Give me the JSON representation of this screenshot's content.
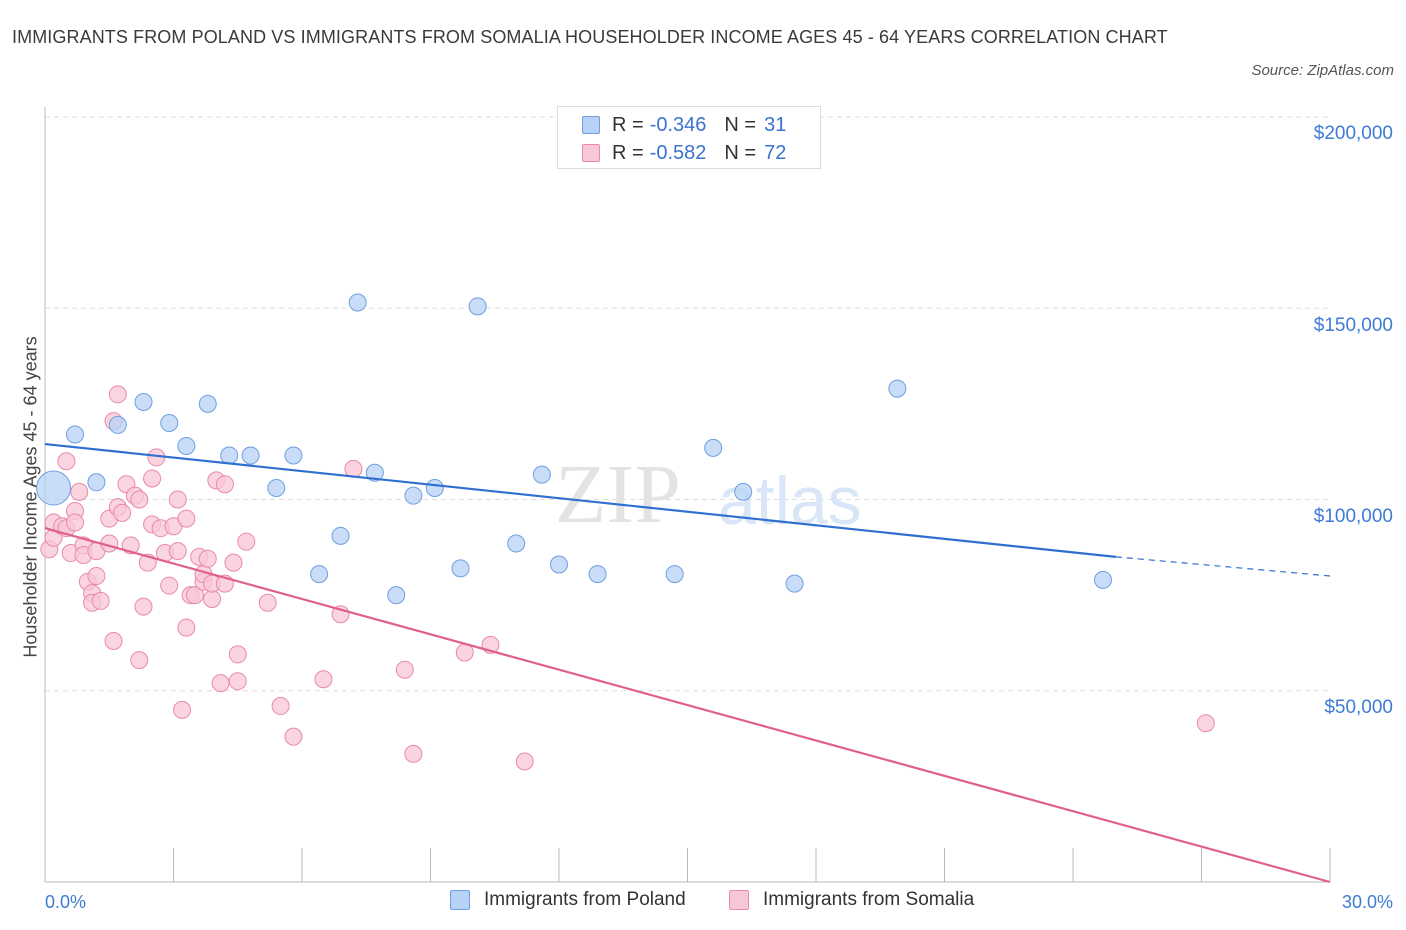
{
  "title": "IMMIGRANTS FROM POLAND VS IMMIGRANTS FROM SOMALIA HOUSEHOLDER INCOME AGES 45 - 64 YEARS CORRELATION CHART",
  "source": "Source: ZipAtlas.com",
  "watermark": {
    "zip": "ZIP",
    "atlas": "atlas"
  },
  "stats": {
    "poland": {
      "r_label": "R =",
      "r_value": "-0.346",
      "n_label": "N =",
      "n_value": "31"
    },
    "somalia": {
      "r_label": "R =",
      "r_value": "-0.582",
      "n_label": "N =",
      "n_value": "72"
    }
  },
  "legend": {
    "poland": "Immigrants from Poland",
    "somalia": "Immigrants from Somalia"
  },
  "colors": {
    "poland_fill": "#b7d2f6",
    "poland_stroke": "#6f9fe0",
    "poland_line": "#2f6fd0",
    "somalia_fill": "#f8c7d6",
    "somalia_stroke": "#e98aa8",
    "somalia_line": "#e0608c",
    "tick_text": "#3e7bd6",
    "grid": "#dddddd"
  },
  "chart_data": {
    "type": "scatter",
    "title": "IMMIGRANTS FROM POLAND VS IMMIGRANTS FROM SOMALIA HOUSEHOLDER INCOME AGES 45 - 64 YEARS CORRELATION CHART",
    "xlabel": "",
    "ylabel": "Householder Income Ages 45 - 64 years",
    "xlim": [
      0,
      30
    ],
    "ylim": [
      0,
      200000
    ],
    "x_tick_labels": [
      "0.0%",
      "30.0%"
    ],
    "y_ticks": [
      50000,
      100000,
      150000,
      200000
    ],
    "y_tick_labels": [
      "$50,000",
      "$100,000",
      "$150,000",
      "$200,000"
    ],
    "grid": true,
    "legend_position": "bottom",
    "series": [
      {
        "name": "Immigrants from Poland",
        "points": [
          [
            0.2,
            103000
          ],
          [
            0.7,
            117000
          ],
          [
            1.2,
            104500
          ],
          [
            1.7,
            119500
          ],
          [
            2.3,
            125500
          ],
          [
            2.9,
            120000
          ],
          [
            3.3,
            114000
          ],
          [
            3.8,
            125000
          ],
          [
            4.3,
            111500
          ],
          [
            4.8,
            111500
          ],
          [
            5.4,
            103000
          ],
          [
            5.8,
            111500
          ],
          [
            6.4,
            80500
          ],
          [
            6.9,
            90500
          ],
          [
            7.3,
            151500
          ],
          [
            7.7,
            107000
          ],
          [
            8.2,
            75000
          ],
          [
            8.6,
            101000
          ],
          [
            9.1,
            103000
          ],
          [
            9.7,
            82000
          ],
          [
            10.1,
            150500
          ],
          [
            11.0,
            88500
          ],
          [
            11.6,
            106500
          ],
          [
            12.0,
            83000
          ],
          [
            12.9,
            80500
          ],
          [
            14.7,
            80500
          ],
          [
            15.6,
            113500
          ],
          [
            16.3,
            102000
          ],
          [
            17.5,
            78000
          ],
          [
            19.9,
            129000
          ],
          [
            24.7,
            79000
          ]
        ],
        "trend": {
          "x": [
            0,
            25
          ],
          "y": [
            114500,
            85000
          ],
          "dashed_extension_to_x": 30,
          "dashed_extension_y": 80000
        }
      },
      {
        "name": "Immigrants from Somalia",
        "points": [
          [
            0.1,
            87000
          ],
          [
            0.2,
            90000
          ],
          [
            0.2,
            94000
          ],
          [
            0.4,
            93000
          ],
          [
            0.5,
            110000
          ],
          [
            0.5,
            92500
          ],
          [
            0.6,
            86000
          ],
          [
            0.7,
            97000
          ],
          [
            0.7,
            94000
          ],
          [
            0.8,
            102000
          ],
          [
            0.9,
            88000
          ],
          [
            0.9,
            85500
          ],
          [
            1.0,
            78500
          ],
          [
            1.1,
            75500
          ],
          [
            1.1,
            73000
          ],
          [
            1.2,
            80000
          ],
          [
            1.2,
            86500
          ],
          [
            1.3,
            73500
          ],
          [
            1.5,
            88500
          ],
          [
            1.5,
            95000
          ],
          [
            1.6,
            63000
          ],
          [
            1.6,
            120500
          ],
          [
            1.7,
            98000
          ],
          [
            1.7,
            127500
          ],
          [
            1.8,
            96500
          ],
          [
            1.9,
            104000
          ],
          [
            2.0,
            88000
          ],
          [
            2.1,
            101000
          ],
          [
            2.2,
            100000
          ],
          [
            2.2,
            58000
          ],
          [
            2.3,
            72000
          ],
          [
            2.4,
            83500
          ],
          [
            2.5,
            93500
          ],
          [
            2.5,
            105500
          ],
          [
            2.6,
            111000
          ],
          [
            2.7,
            92500
          ],
          [
            2.8,
            86000
          ],
          [
            2.9,
            77500
          ],
          [
            3.0,
            93000
          ],
          [
            3.1,
            100000
          ],
          [
            3.1,
            86500
          ],
          [
            3.2,
            45000
          ],
          [
            3.3,
            95000
          ],
          [
            3.3,
            66500
          ],
          [
            3.4,
            75000
          ],
          [
            3.5,
            75000
          ],
          [
            3.6,
            85000
          ],
          [
            3.7,
            78500
          ],
          [
            3.7,
            80500
          ],
          [
            3.8,
            84500
          ],
          [
            3.9,
            74000
          ],
          [
            3.9,
            78000
          ],
          [
            4.0,
            105000
          ],
          [
            4.1,
            52000
          ],
          [
            4.2,
            104000
          ],
          [
            4.2,
            78000
          ],
          [
            4.4,
            83500
          ],
          [
            4.5,
            52500
          ],
          [
            4.5,
            59500
          ],
          [
            4.7,
            89000
          ],
          [
            5.2,
            73000
          ],
          [
            5.5,
            46000
          ],
          [
            5.8,
            38000
          ],
          [
            6.5,
            53000
          ],
          [
            6.9,
            70000
          ],
          [
            7.2,
            108000
          ],
          [
            8.4,
            55500
          ],
          [
            8.6,
            33500
          ],
          [
            9.8,
            60000
          ],
          [
            10.4,
            62000
          ],
          [
            11.2,
            31500
          ],
          [
            27.1,
            41500
          ]
        ],
        "trend": {
          "x": [
            0,
            30
          ],
          "y": [
            92500,
            0
          ]
        }
      }
    ]
  }
}
